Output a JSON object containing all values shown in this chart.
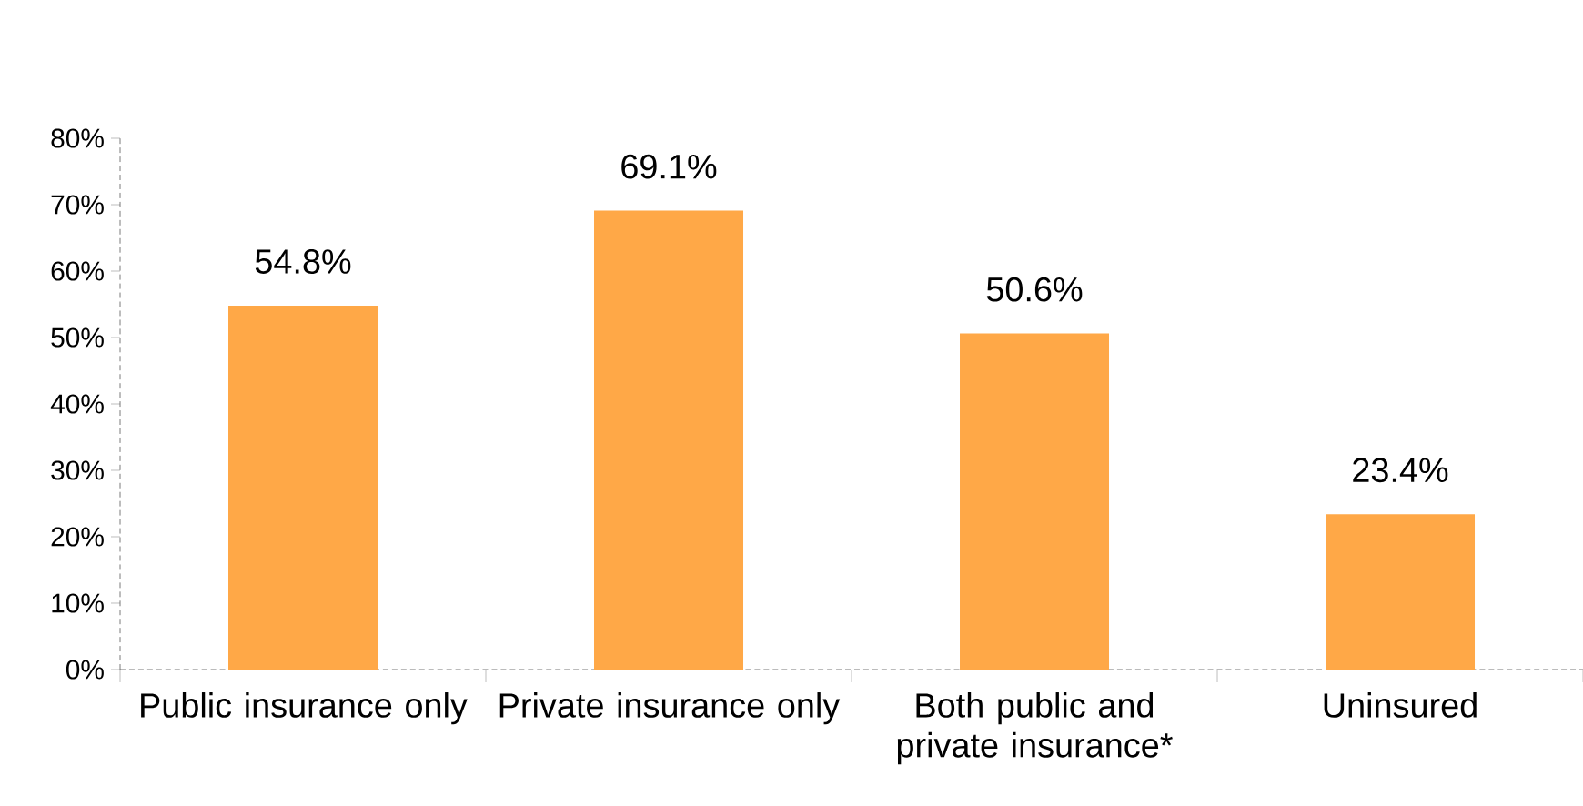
{
  "chart_data": {
    "type": "bar",
    "categories": [
      "Public insurance only",
      "Private insurance only",
      "Both public and private insurance*",
      "Uninsured"
    ],
    "values": [
      54.8,
      69.1,
      50.6,
      23.4
    ],
    "value_labels": [
      "54.8%",
      "69.1%",
      "50.6%",
      "23.4%"
    ],
    "color": "#ffa847",
    "ylim": [
      0,
      80
    ],
    "yticks": [
      {
        "value": 0,
        "label": "0%"
      },
      {
        "value": 10,
        "label": "10%"
      },
      {
        "value": 20,
        "label": "20%"
      },
      {
        "value": 30,
        "label": "30%"
      },
      {
        "value": 40,
        "label": "40%"
      },
      {
        "value": 50,
        "label": "50%"
      },
      {
        "value": 60,
        "label": "60%"
      },
      {
        "value": 70,
        "label": "70%"
      },
      {
        "value": 80,
        "label": "80%"
      }
    ]
  }
}
